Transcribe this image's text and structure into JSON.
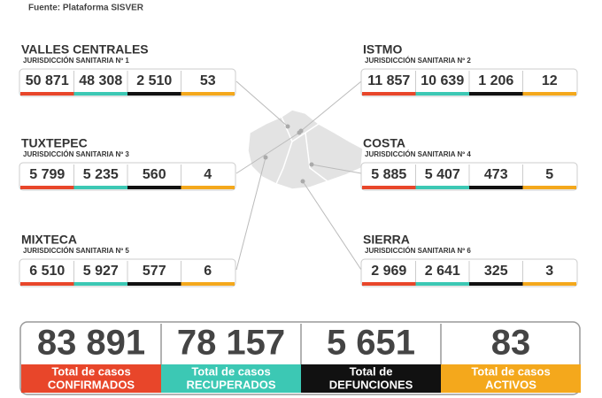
{
  "header": {
    "source": "Fuente: Plataforma SISVER"
  },
  "regions": [
    {
      "name": "VALLES CENTRALES",
      "subtitle": "JURISDICCIÓN SANITARIA Nº 1",
      "values": [
        "50 871",
        "48 308",
        "2 510",
        "53"
      ]
    },
    {
      "name": "ISTMO",
      "subtitle": "JURISDICCIÓN SANITARIA Nº 2",
      "values": [
        "11 857",
        "10 639",
        "1 206",
        "12"
      ]
    },
    {
      "name": "TUXTEPEC",
      "subtitle": "JURISDICCIÓN SANITARIA Nº 3",
      "values": [
        "5 799",
        "5 235",
        "560",
        "4"
      ]
    },
    {
      "name": "COSTA",
      "subtitle": "JURISDICCIÓN SANITARIA Nº 4",
      "values": [
        "5 885",
        "5 407",
        "473",
        "5"
      ]
    },
    {
      "name": "MIXTECA",
      "subtitle": "JURISDICCIÓN SANITARIA Nº 5",
      "values": [
        "6 510",
        "5 927",
        "577",
        "6"
      ]
    },
    {
      "name": "SIERRA",
      "subtitle": "JURISDICCIÓN SANITARIA Nº 6",
      "values": [
        "2 969",
        "2 641",
        "325",
        "3"
      ]
    }
  ],
  "totals": [
    {
      "value": "83 891",
      "label_line1": "Total de casos",
      "label_line2": "CONFIRMADOS"
    },
    {
      "value": "78 157",
      "label_line1": "Total de casos",
      "label_line2": "RECUPERADOS"
    },
    {
      "value": "5 651",
      "label_line1": "Total de",
      "label_line2": "DEFUNCIONES"
    },
    {
      "value": "83",
      "label_line1": "Total de casos",
      "label_line2": "ACTIVOS"
    }
  ]
}
